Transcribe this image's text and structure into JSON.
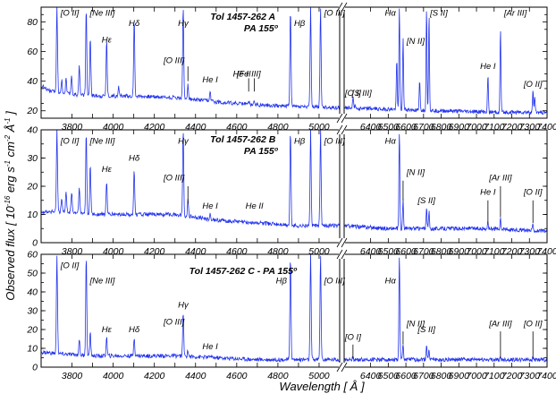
{
  "chart_data": [
    {
      "type": "line",
      "panel": "A",
      "title": "Tol 1457-262 A",
      "subtitle": "PA 155º",
      "ylim": [
        15,
        90
      ],
      "yticks": [
        20,
        40,
        60,
        80
      ],
      "continuum": [
        {
          "x": 3650,
          "y": 37
        },
        {
          "x": 3700,
          "y": 33
        },
        {
          "x": 3800,
          "y": 31
        },
        {
          "x": 3950,
          "y": 30
        },
        {
          "x": 4100,
          "y": 30
        },
        {
          "x": 4300,
          "y": 29
        },
        {
          "x": 4500,
          "y": 26
        },
        {
          "x": 4700,
          "y": 24
        },
        {
          "x": 4900,
          "y": 23
        },
        {
          "x": 5100,
          "y": 22
        },
        {
          "x": 6250,
          "y": 22
        },
        {
          "x": 6500,
          "y": 21
        },
        {
          "x": 6800,
          "y": 20
        },
        {
          "x": 7100,
          "y": 19
        },
        {
          "x": 7400,
          "y": 19
        }
      ],
      "peaks": [
        {
          "x": 3727,
          "y": 90
        },
        {
          "x": 3750,
          "y": 41
        },
        {
          "x": 3771,
          "y": 42
        },
        {
          "x": 3798,
          "y": 44
        },
        {
          "x": 3835,
          "y": 52
        },
        {
          "x": 3869,
          "y": 90
        },
        {
          "x": 3889,
          "y": 70
        },
        {
          "x": 3968,
          "y": 68
        },
        {
          "x": 4026,
          "y": 36
        },
        {
          "x": 4102,
          "y": 82
        },
        {
          "x": 4340,
          "y": 90
        },
        {
          "x": 4363,
          "y": 38
        },
        {
          "x": 4471,
          "y": 33
        },
        {
          "x": 4658,
          "y": 27
        },
        {
          "x": 4686,
          "y": 27
        },
        {
          "x": 4861,
          "y": 90
        },
        {
          "x": 4959,
          "y": 90
        },
        {
          "x": 5007,
          "y": 90
        },
        {
          "x": 6300,
          "y": 30
        },
        {
          "x": 6312,
          "y": 25
        },
        {
          "x": 6548,
          "y": 55
        },
        {
          "x": 6563,
          "y": 90
        },
        {
          "x": 6584,
          "y": 70
        },
        {
          "x": 6678,
          "y": 40
        },
        {
          "x": 6717,
          "y": 90
        },
        {
          "x": 6731,
          "y": 85
        },
        {
          "x": 7065,
          "y": 44
        },
        {
          "x": 7136,
          "y": 75
        },
        {
          "x": 7320,
          "y": 33
        },
        {
          "x": 7330,
          "y": 30
        }
      ],
      "labels": [
        {
          "text": "[O II]",
          "x": 3727,
          "y": 86,
          "side": "right"
        },
        {
          "text": "[Ne III]",
          "x": 3869,
          "y": 86,
          "side": "right"
        },
        {
          "text": "Hε",
          "x": 3968,
          "y": 68,
          "side": "center"
        },
        {
          "text": "Hδ",
          "x": 4102,
          "y": 79,
          "side": "center"
        },
        {
          "text": "Hγ",
          "x": 4340,
          "y": 79,
          "side": "center"
        },
        {
          "text": "[O III]",
          "x": 4363,
          "y": 54,
          "side": "left",
          "marker": [
            40,
            50
          ]
        },
        {
          "text": "He I",
          "x": 4471,
          "y": 41,
          "side": "center"
        },
        {
          "text": "[Fe III]",
          "x": 4658,
          "y": 45,
          "side": "center",
          "marker": [
            33,
            42
          ]
        },
        {
          "text": "He II",
          "x": 4686,
          "y": 45,
          "side": "left",
          "marker": [
            33,
            42
          ]
        },
        {
          "text": "Hβ",
          "x": 4861,
          "y": 79,
          "side": "right"
        },
        {
          "text": "[O III]",
          "x": 5007,
          "y": 86,
          "side": "right"
        },
        {
          "text": "[O I]",
          "x": 6300,
          "y": 32,
          "side": "center"
        },
        {
          "text": "[S III]",
          "x": 6350,
          "y": 32,
          "side": "center"
        },
        {
          "text": "Hα",
          "x": 6563,
          "y": 86,
          "side": "left"
        },
        {
          "text": "[N II]",
          "x": 6584,
          "y": 67,
          "side": "right"
        },
        {
          "text": "[S II]",
          "x": 6717,
          "y": 86,
          "side": "right"
        },
        {
          "text": "He I",
          "x": 7065,
          "y": 50,
          "side": "center"
        },
        {
          "text": "[Ar III]",
          "x": 7136,
          "y": 86,
          "side": "right"
        },
        {
          "text": "[O II]",
          "x": 7320,
          "y": 38,
          "side": "center"
        }
      ]
    },
    {
      "type": "line",
      "panel": "B",
      "title": "Tol 1457-262 B",
      "subtitle": "PA 155º",
      "ylim": [
        0,
        40
      ],
      "yticks": [
        0,
        10,
        20,
        30,
        40
      ],
      "continuum": [
        {
          "x": 3650,
          "y": 11
        },
        {
          "x": 3750,
          "y": 11
        },
        {
          "x": 3900,
          "y": 10
        },
        {
          "x": 4100,
          "y": 10
        },
        {
          "x": 4300,
          "y": 10
        },
        {
          "x": 4500,
          "y": 8
        },
        {
          "x": 4700,
          "y": 7
        },
        {
          "x": 4900,
          "y": 6
        },
        {
          "x": 5100,
          "y": 6
        },
        {
          "x": 6250,
          "y": 6
        },
        {
          "x": 6500,
          "y": 5
        },
        {
          "x": 6800,
          "y": 5
        },
        {
          "x": 7100,
          "y": 5
        },
        {
          "x": 7400,
          "y": 4
        }
      ],
      "peaks": [
        {
          "x": 3727,
          "y": 40
        },
        {
          "x": 3750,
          "y": 16
        },
        {
          "x": 3771,
          "y": 18
        },
        {
          "x": 3798,
          "y": 18
        },
        {
          "x": 3835,
          "y": 20
        },
        {
          "x": 3869,
          "y": 40
        },
        {
          "x": 3889,
          "y": 28
        },
        {
          "x": 3968,
          "y": 22
        },
        {
          "x": 4102,
          "y": 26
        },
        {
          "x": 4340,
          "y": 40
        },
        {
          "x": 4363,
          "y": 15
        },
        {
          "x": 4471,
          "y": 10
        },
        {
          "x": 4861,
          "y": 40
        },
        {
          "x": 4959,
          "y": 40
        },
        {
          "x": 5007,
          "y": 40
        },
        {
          "x": 6563,
          "y": 40
        },
        {
          "x": 6584,
          "y": 15
        },
        {
          "x": 6717,
          "y": 12
        },
        {
          "x": 6731,
          "y": 11
        },
        {
          "x": 7065,
          "y": 7
        },
        {
          "x": 7136,
          "y": 9
        },
        {
          "x": 7320,
          "y": 7
        }
      ],
      "labels": [
        {
          "text": "[O II]",
          "x": 3727,
          "y": 36,
          "side": "right"
        },
        {
          "text": "[Ne III]",
          "x": 3869,
          "y": 36,
          "side": "right"
        },
        {
          "text": "Hε",
          "x": 3968,
          "y": 26,
          "side": "center"
        },
        {
          "text": "Hδ",
          "x": 4102,
          "y": 30,
          "side": "center"
        },
        {
          "text": "Hγ",
          "x": 4340,
          "y": 36,
          "side": "center"
        },
        {
          "text": "[O III]",
          "x": 4363,
          "y": 23,
          "side": "left",
          "marker": [
            14,
            20
          ]
        },
        {
          "text": "He I",
          "x": 4471,
          "y": 13,
          "side": "center"
        },
        {
          "text": "He II",
          "x": 4686,
          "y": 13,
          "side": "center"
        },
        {
          "text": "Hβ",
          "x": 4861,
          "y": 36,
          "side": "right"
        },
        {
          "text": "[O III]",
          "x": 5007,
          "y": 36,
          "side": "right"
        },
        {
          "text": "Hα",
          "x": 6563,
          "y": 36,
          "side": "left"
        },
        {
          "text": "[N II]",
          "x": 6584,
          "y": 25,
          "side": "right",
          "marker": [
            15,
            22
          ]
        },
        {
          "text": "[S II]",
          "x": 6717,
          "y": 15,
          "side": "center"
        },
        {
          "text": "He I",
          "x": 7065,
          "y": 18,
          "side": "center",
          "marker": [
            7,
            15
          ]
        },
        {
          "text": "[Ar III]",
          "x": 7136,
          "y": 23,
          "side": "center",
          "marker": [
            9,
            20
          ]
        },
        {
          "text": "[O II]",
          "x": 7320,
          "y": 18,
          "side": "center",
          "marker": [
            7,
            15
          ]
        }
      ]
    },
    {
      "type": "line",
      "panel": "C",
      "title": "Tol 1457-262 C - PA 155º",
      "ylim": [
        0,
        60
      ],
      "yticks": [
        0,
        10,
        20,
        30,
        40,
        50,
        60
      ],
      "continuum": [
        {
          "x": 3650,
          "y": 8
        },
        {
          "x": 3750,
          "y": 7
        },
        {
          "x": 3900,
          "y": 6
        },
        {
          "x": 4100,
          "y": 6
        },
        {
          "x": 4300,
          "y": 6
        },
        {
          "x": 4500,
          "y": 5
        },
        {
          "x": 4700,
          "y": 4
        },
        {
          "x": 4900,
          "y": 4
        },
        {
          "x": 5100,
          "y": 4
        },
        {
          "x": 6250,
          "y": 4
        },
        {
          "x": 6500,
          "y": 4
        },
        {
          "x": 6800,
          "y": 4
        },
        {
          "x": 7100,
          "y": 4
        },
        {
          "x": 7400,
          "y": 4
        }
      ],
      "peaks": [
        {
          "x": 3727,
          "y": 60
        },
        {
          "x": 3835,
          "y": 15
        },
        {
          "x": 3869,
          "y": 60
        },
        {
          "x": 3889,
          "y": 18
        },
        {
          "x": 3968,
          "y": 16
        },
        {
          "x": 4102,
          "y": 16
        },
        {
          "x": 4340,
          "y": 29
        },
        {
          "x": 4363,
          "y": 9
        },
        {
          "x": 4471,
          "y": 6
        },
        {
          "x": 4861,
          "y": 60
        },
        {
          "x": 4959,
          "y": 60
        },
        {
          "x": 5007,
          "y": 60
        },
        {
          "x": 6300,
          "y": 5
        },
        {
          "x": 6563,
          "y": 60
        },
        {
          "x": 6584,
          "y": 12
        },
        {
          "x": 6717,
          "y": 12
        },
        {
          "x": 6731,
          "y": 10
        },
        {
          "x": 7136,
          "y": 5
        },
        {
          "x": 7320,
          "y": 5
        }
      ],
      "labels": [
        {
          "text": "[O II]",
          "x": 3727,
          "y": 54,
          "side": "right"
        },
        {
          "text": "[Ne III]",
          "x": 3869,
          "y": 46,
          "side": "right"
        },
        {
          "text": "Hε",
          "x": 3968,
          "y": 20,
          "side": "center"
        },
        {
          "text": "Hδ",
          "x": 4102,
          "y": 20,
          "side": "center"
        },
        {
          "text": "Hγ",
          "x": 4340,
          "y": 33,
          "side": "center"
        },
        {
          "text": "[O III]",
          "x": 4363,
          "y": 24,
          "side": "left"
        },
        {
          "text": "He I",
          "x": 4471,
          "y": 11,
          "side": "center"
        },
        {
          "text": "Hβ",
          "x": 4861,
          "y": 46,
          "side": "left"
        },
        {
          "text": "[O III]",
          "x": 5007,
          "y": 46,
          "side": "right"
        },
        {
          "text": "[O I]",
          "x": 6300,
          "y": 16,
          "side": "center",
          "marker": [
            5,
            12
          ]
        },
        {
          "text": "Hα",
          "x": 6563,
          "y": 46,
          "side": "left"
        },
        {
          "text": "[N II]",
          "x": 6584,
          "y": 23,
          "side": "right",
          "marker": [
            12,
            19
          ]
        },
        {
          "text": "[S II]",
          "x": 6717,
          "y": 20,
          "side": "center"
        },
        {
          "text": "[Ar III]",
          "x": 7136,
          "y": 23,
          "side": "center",
          "marker": [
            5,
            19
          ]
        },
        {
          "text": "[O II]",
          "x": 7320,
          "y": 23,
          "side": "center",
          "marker": [
            5,
            19
          ]
        }
      ]
    }
  ],
  "axes": {
    "xlabel": "Wavelength [ Å ]",
    "ylabel_pre": "Observed flux [ 10",
    "ylabel_exp": "-16",
    "ylabel_post": " erg s",
    "ylabel_exp2": "-1",
    "ylabel_post2": " cm",
    "ylabel_exp3": "-2",
    "ylabel_post3": " Å",
    "ylabel_exp4": "-1",
    "ylabel_end": " ]",
    "x_left_range": [
      3650,
      5100
    ],
    "x_right_range": [
      6250,
      7400
    ],
    "x_left_ticks": [
      3800,
      3900,
      4000,
      4100,
      4200,
      4300,
      4400,
      4500,
      4600,
      4700,
      4800,
      4900,
      5000
    ],
    "x_right_ticks": [
      6400,
      6500,
      6600,
      6700,
      6800,
      6900,
      7000,
      7100,
      7200,
      7300,
      7400
    ],
    "x_left_tick_labels": [
      "3800",
      "4000",
      "4200",
      "4400",
      "4600",
      "4800",
      "5000"
    ],
    "x_right_tick_labels": [
      "6400",
      "6500",
      "6600",
      "6700",
      "6800",
      "6900",
      "7000",
      "7100",
      "7200",
      "7300",
      "7400"
    ],
    "x_left_labeled": [
      3800,
      4000,
      4200,
      4400,
      4600,
      4800,
      5000
    ],
    "x_right_labeled": [
      6400,
      6500,
      6600,
      6700,
      6800,
      6900,
      7000,
      7100,
      7200,
      7300,
      7400
    ]
  },
  "colors": {
    "spectrum": "#2233ee",
    "axes": "#000000"
  }
}
